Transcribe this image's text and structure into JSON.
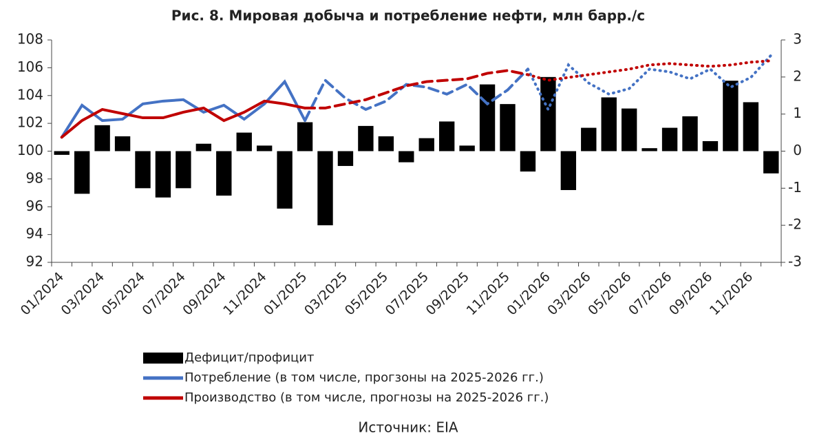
{
  "chart_data": {
    "type": "bar_line",
    "title": "Рис. 8. Мировая добыча и потребление нефти, млн барр./с",
    "source": "Источник: EIA",
    "categories": [
      "01/2024",
      null,
      "03/2024",
      null,
      "05/2024",
      null,
      "07/2024",
      null,
      "09/2024",
      null,
      "11/2024",
      null,
      "01/2025",
      null,
      "03/2025",
      null,
      "05/2025",
      null,
      "07/2025",
      null,
      "09/2025",
      null,
      "11/2025",
      null,
      "01/2026",
      null,
      "03/2026",
      null,
      "05/2026",
      null,
      "07/2026",
      null,
      "09/2026",
      null,
      "11/2026",
      null
    ],
    "ylim": [
      92,
      108
    ],
    "yticks": [
      92,
      94,
      96,
      98,
      100,
      102,
      104,
      106,
      108
    ],
    "y2lim": [
      -3,
      3
    ],
    "y2ticks": [
      -3,
      -2,
      -1,
      0,
      1,
      2,
      3
    ],
    "line_styles": [
      "solid",
      "dashed",
      "dotted"
    ],
    "style_breaks": [
      12,
      23
    ],
    "series": [
      {
        "name": "Дефицит/профицит",
        "type": "bar",
        "axis": "y2",
        "color": "#000000",
        "values": [
          -0.1,
          -1.15,
          0.7,
          0.4,
          -1.0,
          -1.25,
          -1.0,
          0.2,
          -1.2,
          0.5,
          0.15,
          -1.55,
          0.78,
          -2.0,
          -0.4,
          0.68,
          0.4,
          -0.3,
          0.35,
          0.8,
          0.15,
          1.8,
          1.27,
          -0.55,
          2.0,
          -1.05,
          0.63,
          1.45,
          1.15,
          0.08,
          0.63,
          0.94,
          0.27,
          1.9,
          1.32,
          -0.6
        ]
      },
      {
        "name": "Потребление (в том числе, прогзоны на 2025-2026 гг.)",
        "type": "line",
        "color": "#4472c4",
        "values": [
          101.0,
          103.3,
          102.2,
          102.3,
          103.4,
          103.6,
          103.7,
          102.8,
          103.3,
          102.3,
          103.4,
          105.0,
          102.2,
          105.1,
          103.8,
          103.0,
          103.6,
          104.8,
          104.6,
          104.1,
          104.8,
          103.4,
          104.4,
          105.9,
          103.0,
          106.2,
          104.9,
          104.1,
          104.5,
          105.9,
          105.7,
          105.2,
          105.9,
          104.6,
          105.3,
          106.9
        ]
      },
      {
        "name": "Производство (в том числе, прогнозы на 2025-2026 гг.)",
        "type": "line",
        "color": "#c00000",
        "values": [
          101.0,
          102.2,
          103.0,
          102.7,
          102.4,
          102.4,
          102.8,
          103.1,
          102.2,
          102.8,
          103.6,
          103.4,
          103.1,
          103.1,
          103.4,
          103.7,
          104.2,
          104.7,
          105.0,
          105.1,
          105.2,
          105.6,
          105.8,
          105.5,
          105.1,
          105.3,
          105.5,
          105.7,
          105.9,
          106.2,
          106.3,
          106.2,
          106.1,
          106.2,
          106.4,
          106.5
        ]
      }
    ]
  }
}
